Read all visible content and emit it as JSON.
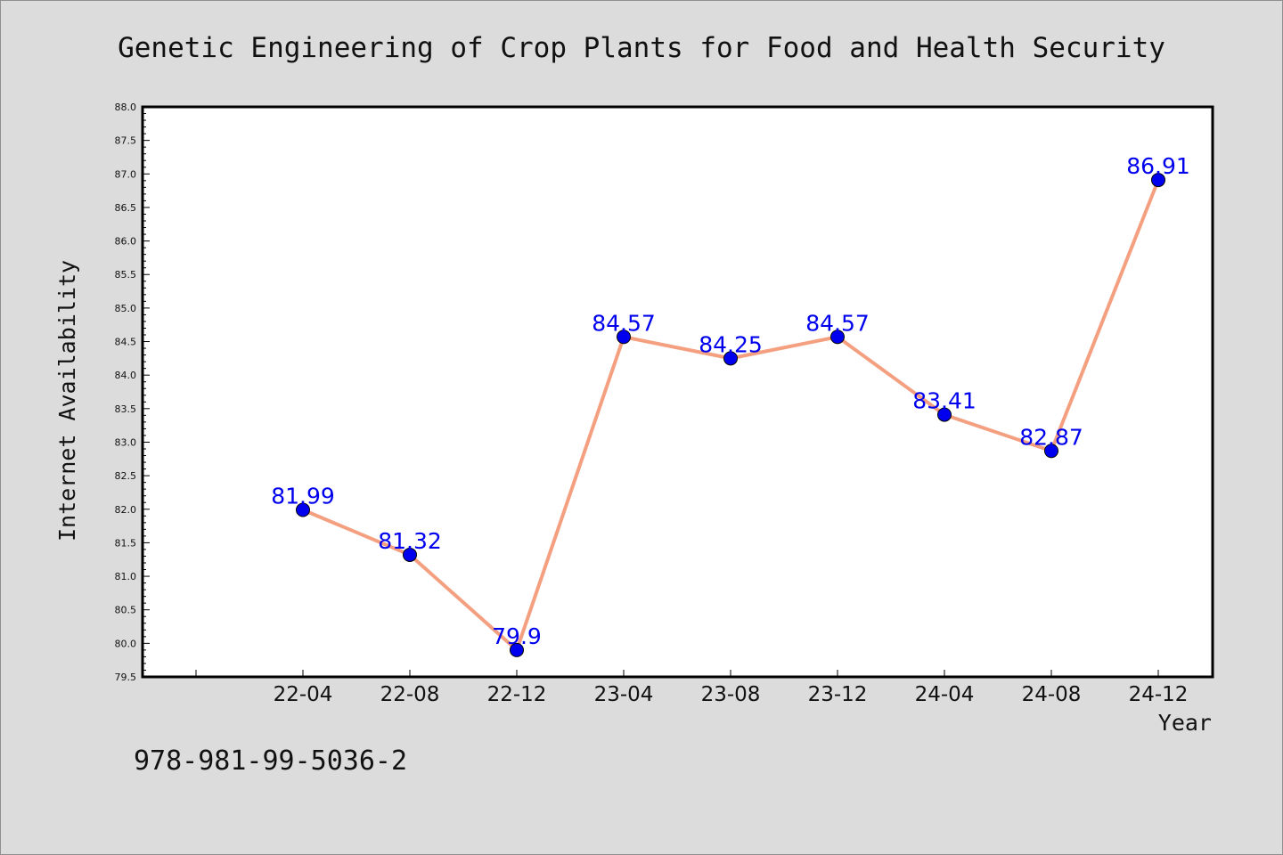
{
  "chart_data": {
    "type": "line",
    "title": "Genetic Engineering of Crop Plants for Food and Health Security",
    "xlabel": "Year",
    "ylabel": "Internet Availability",
    "categories": [
      "22-04",
      "22-08",
      "22-12",
      "23-04",
      "23-08",
      "23-12",
      "24-04",
      "24-08",
      "24-12"
    ],
    "values": [
      81.99,
      81.32,
      79.9,
      84.57,
      84.25,
      84.57,
      83.41,
      82.87,
      86.91
    ],
    "data_labels": [
      "81.99",
      "81.32",
      "79.9",
      "84.57",
      "84.25",
      "84.57",
      "83.41",
      "82.87",
      "86.91"
    ],
    "ylim": [
      79.5,
      88.0
    ],
    "yticks": [
      "79.5",
      "80.0",
      "80.5",
      "81.0",
      "81.5",
      "82.0",
      "82.5",
      "83.0",
      "83.5",
      "84.0",
      "84.5",
      "85.0",
      "85.5",
      "86.0",
      "86.5",
      "87.0",
      "87.5",
      "88.0"
    ],
    "line_color": "#f4a080",
    "marker_color": "#0000ee",
    "label_color": "#0000ee",
    "background_color": "#dcdcdc",
    "plot_background": "#ffffff",
    "grid": false,
    "legend": "none"
  },
  "footer": {
    "isbn": "978-981-99-5036-2"
  }
}
